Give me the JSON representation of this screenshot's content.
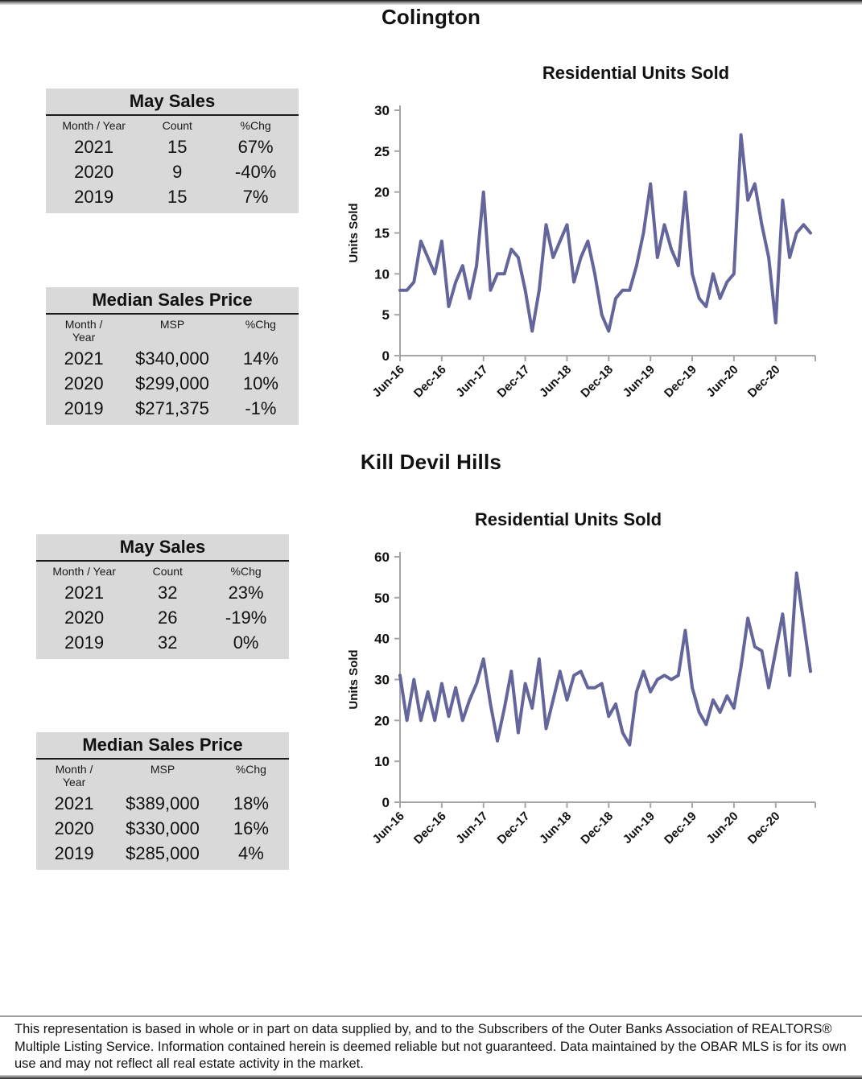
{
  "page": {
    "sections": [
      {
        "title": "Colington",
        "may_sales": {
          "title": "May Sales",
          "headers": {
            "month_year": "Month / Year",
            "count": "Count",
            "chg": "%Chg"
          },
          "rows": [
            {
              "year": "2021",
              "count": "15",
              "chg": "67%"
            },
            {
              "year": "2020",
              "count": "9",
              "chg": "-40%"
            },
            {
              "year": "2019",
              "count": "15",
              "chg": "7%"
            }
          ]
        },
        "median_sales_price": {
          "title": "Median Sales Price",
          "headers": {
            "month_year": "Month /\nYear",
            "msp": "MSP",
            "chg": "%Chg"
          },
          "rows": [
            {
              "year": "2021",
              "msp": "$340,000",
              "chg": "14%"
            },
            {
              "year": "2020",
              "msp": "$299,000",
              "chg": "10%"
            },
            {
              "year": "2019",
              "msp": "$271,375",
              "chg": "-1%"
            }
          ]
        }
      },
      {
        "title": "Kill Devil Hills",
        "may_sales": {
          "title": "May Sales",
          "headers": {
            "month_year": "Month / Year",
            "count": "Count",
            "chg": "%Chg"
          },
          "rows": [
            {
              "year": "2021",
              "count": "32",
              "chg": "23%"
            },
            {
              "year": "2020",
              "count": "26",
              "chg": "-19%"
            },
            {
              "year": "2019",
              "count": "32",
              "chg": "0%"
            }
          ]
        },
        "median_sales_price": {
          "title": "Median Sales Price",
          "headers": {
            "month_year": "Month /\nYear",
            "msp": "MSP",
            "chg": "%Chg"
          },
          "rows": [
            {
              "year": "2021",
              "msp": "$389,000",
              "chg": "18%"
            },
            {
              "year": "2020",
              "msp": "$330,000",
              "chg": "16%"
            },
            {
              "year": "2019",
              "msp": "$285,000",
              "chg": "4%"
            }
          ]
        }
      }
    ],
    "footer": {
      "disclaimer": "This representation is based in whole or in part on data supplied by, and to the Subscribers of the Outer Banks Association of REALTORS® Multiple Listing Service.  Information contained herein is deemed reliable but not guaranteed.  Data maintained by the OBAR MLS is for its own use and may not reflect all real estate activity in the market."
    }
  },
  "chart_data": [
    {
      "type": "line",
      "title": "Residential Units Sold",
      "xlabel": "",
      "ylabel": "Units Sold",
      "ylim": [
        0,
        30
      ],
      "ytick_step": 5,
      "grid": false,
      "legend": "none",
      "line_color": "#64659B",
      "axis_color": "#a6a6a6",
      "xtick_every": 6,
      "xtick_labels": [
        "Jun-16",
        "Dec-16",
        "Jun-17",
        "Dec-17",
        "Jun-18",
        "Dec-18",
        "Jun-19",
        "Dec-19",
        "Jun-20",
        "Dec-20"
      ],
      "x": [
        "Jun-16",
        "Jul-16",
        "Aug-16",
        "Sep-16",
        "Oct-16",
        "Nov-16",
        "Dec-16",
        "Jan-17",
        "Feb-17",
        "Mar-17",
        "Apr-17",
        "May-17",
        "Jun-17",
        "Jul-17",
        "Aug-17",
        "Sep-17",
        "Oct-17",
        "Nov-17",
        "Dec-17",
        "Jan-18",
        "Feb-18",
        "Mar-18",
        "Apr-18",
        "May-18",
        "Jun-18",
        "Jul-18",
        "Aug-18",
        "Sep-18",
        "Oct-18",
        "Nov-18",
        "Dec-18",
        "Jan-19",
        "Feb-19",
        "Mar-19",
        "Apr-19",
        "May-19",
        "Jun-19",
        "Jul-19",
        "Aug-19",
        "Sep-19",
        "Oct-19",
        "Nov-19",
        "Dec-19",
        "Jan-20",
        "Feb-20",
        "Mar-20",
        "Apr-20",
        "May-20",
        "Jun-20",
        "Jul-20",
        "Aug-20",
        "Sep-20",
        "Oct-20",
        "Nov-20",
        "Dec-20",
        "Jan-21",
        "Feb-21",
        "Mar-21",
        "Apr-21",
        "May-21"
      ],
      "series": [
        {
          "name": "Colington Units Sold",
          "values": [
            8,
            8,
            9,
            14,
            12,
            10,
            14,
            6,
            9,
            11,
            7,
            11,
            20,
            8,
            10,
            10,
            13,
            12,
            8,
            3,
            8,
            16,
            12,
            14,
            16,
            9,
            12,
            14,
            10,
            5,
            3,
            7,
            8,
            8,
            11,
            15,
            21,
            12,
            16,
            13,
            11,
            20,
            10,
            7,
            6,
            10,
            7,
            9,
            10,
            27,
            19,
            21,
            16,
            12,
            4,
            19,
            12,
            15,
            16,
            15
          ]
        }
      ]
    },
    {
      "type": "line",
      "title": "Residential Units Sold",
      "xlabel": "",
      "ylabel": "Units Sold",
      "ylim": [
        0,
        60
      ],
      "ytick_step": 10,
      "grid": false,
      "legend": "none",
      "line_color": "#64659B",
      "axis_color": "#a6a6a6",
      "xtick_every": 6,
      "xtick_labels": [
        "Jun-16",
        "Dec-16",
        "Jun-17",
        "Dec-17",
        "Jun-18",
        "Dec-18",
        "Jun-19",
        "Dec-19",
        "Jun-20",
        "Dec-20"
      ],
      "x": [
        "Jun-16",
        "Jul-16",
        "Aug-16",
        "Sep-16",
        "Oct-16",
        "Nov-16",
        "Dec-16",
        "Jan-17",
        "Feb-17",
        "Mar-17",
        "Apr-17",
        "May-17",
        "Jun-17",
        "Jul-17",
        "Aug-17",
        "Sep-17",
        "Oct-17",
        "Nov-17",
        "Dec-17",
        "Jan-18",
        "Feb-18",
        "Mar-18",
        "Apr-18",
        "May-18",
        "Jun-18",
        "Jul-18",
        "Aug-18",
        "Sep-18",
        "Oct-18",
        "Nov-18",
        "Dec-18",
        "Jan-19",
        "Feb-19",
        "Mar-19",
        "Apr-19",
        "May-19",
        "Jun-19",
        "Jul-19",
        "Aug-19",
        "Sep-19",
        "Oct-19",
        "Nov-19",
        "Dec-19",
        "Jan-20",
        "Feb-20",
        "Mar-20",
        "Apr-20",
        "May-20",
        "Jun-20",
        "Jul-20",
        "Aug-20",
        "Sep-20",
        "Oct-20",
        "Nov-20",
        "Dec-20",
        "Jan-21",
        "Feb-21",
        "Mar-21",
        "Apr-21",
        "May-21"
      ],
      "series": [
        {
          "name": "Kill Devil Hills Units Sold",
          "values": [
            31,
            20,
            30,
            20,
            27,
            20,
            29,
            21,
            28,
            20,
            25,
            29,
            35,
            24,
            15,
            23,
            32,
            17,
            29,
            23,
            35,
            18,
            25,
            32,
            25,
            31,
            32,
            28,
            28,
            29,
            21,
            24,
            17,
            14,
            27,
            32,
            27,
            30,
            31,
            30,
            31,
            42,
            28,
            22,
            19,
            25,
            22,
            26,
            23,
            33,
            45,
            38,
            37,
            28,
            37,
            46,
            31,
            56,
            44,
            32
          ]
        }
      ]
    }
  ]
}
